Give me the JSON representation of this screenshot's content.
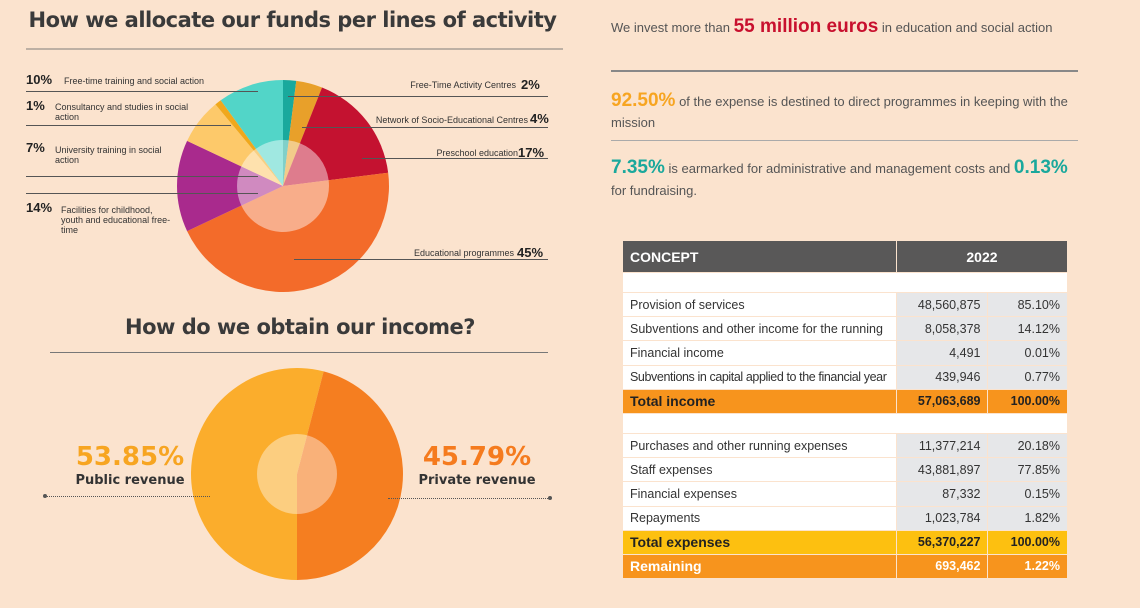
{
  "allocation": {
    "title": "How we allocate our funds per lines of activity",
    "labels": [
      {
        "pct": "10%",
        "text": "Free-time training and social action"
      },
      {
        "pct": "1%",
        "text": "Consultancy and studies in social action"
      },
      {
        "pct": "7%",
        "text": "University training in social action"
      },
      {
        "pct": "14%",
        "text": "Facilities for childhood, youth and educational free-time"
      },
      {
        "pct": "2%",
        "text": "Free-Time Activity Centres"
      },
      {
        "pct": "4%",
        "text": "Network of Socio-Educational Centres"
      },
      {
        "pct": "17%",
        "text": "Preschool education"
      },
      {
        "pct": "45%",
        "text": "Educational programmes"
      }
    ]
  },
  "income": {
    "title": "How do we obtain our income?",
    "public_pct": "53.85%",
    "public_label": "Public revenue",
    "private_pct": "45.79%",
    "private_label": "Private revenue"
  },
  "summary": {
    "line1_pre": "We invest more than",
    "line1_hl": "55 million euros",
    "line1_post": "in education and social action",
    "line2_hl": "92.50%",
    "line2_post": "of the expense is destined to direct programmes in keeping with the mission",
    "line3_hl1": "7.35%",
    "line3_mid": "is earmarked for administrative and management costs and",
    "line3_hl2": "0.13%",
    "line3_post": "for fundraising."
  },
  "table": {
    "header_concept": "CONCEPT",
    "header_year": "2022",
    "income_rows": [
      {
        "concept": "Provision of services",
        "amount": "48,560,875",
        "pct": "85.10%"
      },
      {
        "concept": "Subventions and other income for the running",
        "amount": "8,058,378",
        "pct": "14.12%"
      },
      {
        "concept": "Financial income",
        "amount": "4,491",
        "pct": "0.01%"
      },
      {
        "concept": "Subventions in capital applied to the financial year",
        "amount": "439,946",
        "pct": "0.77%"
      }
    ],
    "total_income": {
      "concept": "Total income",
      "amount": "57,063,689",
      "pct": "100.00%"
    },
    "expense_rows": [
      {
        "concept": "Purchases and other running expenses",
        "amount": "11,377,214",
        "pct": "20.18%"
      },
      {
        "concept": "Staff expenses",
        "amount": "43,881,897",
        "pct": "77.85%"
      },
      {
        "concept": "Financial expenses",
        "amount": "87,332",
        "pct": "0.15%"
      },
      {
        "concept": "Repayments",
        "amount": "1,023,784",
        "pct": "1.82%"
      }
    ],
    "total_expenses": {
      "concept": "Total expenses",
      "amount": "56,370,227",
      "pct": "100.00%"
    },
    "remaining": {
      "concept": "Remaining",
      "amount": "693,462",
      "pct": "1.22%"
    }
  },
  "chart_data": [
    {
      "type": "pie",
      "title": "How we allocate our funds per lines of activity",
      "categories": [
        "Free-Time Activity Centres",
        "Network of Socio-Educational Centres",
        "Preschool education",
        "Educational programmes",
        "Facilities for childhood, youth and educational free-time",
        "University training in social action",
        "Consultancy and studies in social action",
        "Free-time training and social action"
      ],
      "values": [
        2,
        4,
        17,
        45,
        14,
        7,
        1,
        10
      ],
      "colors": [
        "#19a99d",
        "#e8a02a",
        "#c41230",
        "#f36b2a",
        "#a92a8d",
        "#fdc96a",
        "#f0a81c",
        "#52d5c8"
      ]
    },
    {
      "type": "pie",
      "title": "How do we obtain our income?",
      "categories": [
        "Public revenue",
        "Private revenue"
      ],
      "values": [
        53.85,
        45.79
      ],
      "colors": [
        "#fbad2c",
        "#f57e20"
      ]
    }
  ]
}
